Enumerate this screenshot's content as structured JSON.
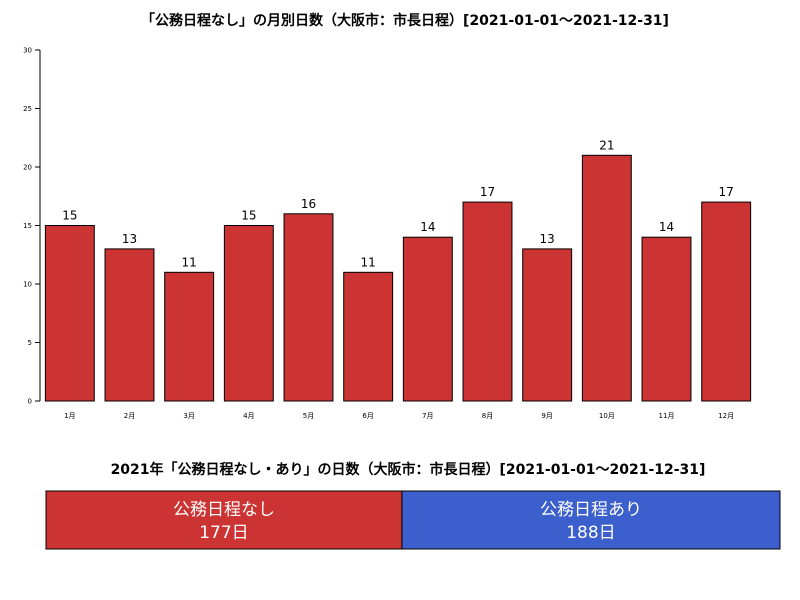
{
  "chart_data": [
    {
      "type": "bar",
      "title": "「公務日程なし」の月別日数（大阪市：市長日程）[2021-01-01〜2021-12-31]",
      "categories": [
        "1月",
        "2月",
        "3月",
        "4月",
        "5月",
        "6月",
        "7月",
        "8月",
        "9月",
        "10月",
        "11月",
        "12月"
      ],
      "values": [
        15,
        13,
        11,
        15,
        16,
        11,
        14,
        17,
        13,
        21,
        14,
        17
      ],
      "ylim": [
        0,
        30
      ],
      "yticks": [
        0,
        5,
        10,
        15,
        20,
        25,
        30
      ],
      "bar_color": "#cc3333",
      "grid": false
    },
    {
      "type": "stacked-bar",
      "title": "2021年「公務日程なし・あり」の日数（大阪市：市長日程）[2021-01-01〜2021-12-31]",
      "segments": [
        {
          "name": "公務日程なし",
          "value": 177,
          "label": "177日",
          "color": "#cc3333"
        },
        {
          "name": "公務日程あり",
          "value": 188,
          "label": "188日",
          "color": "#3b5fcc"
        }
      ]
    }
  ]
}
